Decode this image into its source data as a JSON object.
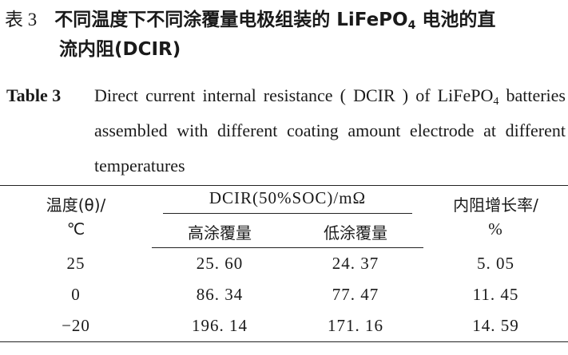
{
  "caption_cn": {
    "label": "表 3",
    "line1_prefix": "不同温度下不同涂覆量电极组装的 LiFePO",
    "sub": "4",
    "line1_suffix": " 电池的直",
    "line2": "流内阻(DCIR)"
  },
  "caption_en": {
    "label": "Table 3",
    "text_prefix": "Direct current internal resistance ( DCIR ) of LiFePO",
    "sub": "4",
    "text_suffix": " batteries assembled with different coating amount electrode at different temperatures"
  },
  "table": {
    "header_temp": "温度(θ)/℃",
    "header_temp_line1": "温度(θ)/",
    "header_temp_line2": "℃",
    "header_dcir": "DCIR(50%SOC)/mΩ",
    "header_growth_line1": "内阻增长率/",
    "header_growth_line2": "%",
    "sub_high": "高涂覆量",
    "sub_low": "低涂覆量",
    "rows": [
      {
        "temp": "25",
        "high": "25. 60",
        "low": "24. 37",
        "growth": "5. 05"
      },
      {
        "temp": "0",
        "high": "86. 34",
        "low": "77. 47",
        "growth": "11. 45"
      },
      {
        "temp": "−20",
        "high": "196. 14",
        "low": "171. 16",
        "growth": "14. 59"
      }
    ]
  }
}
